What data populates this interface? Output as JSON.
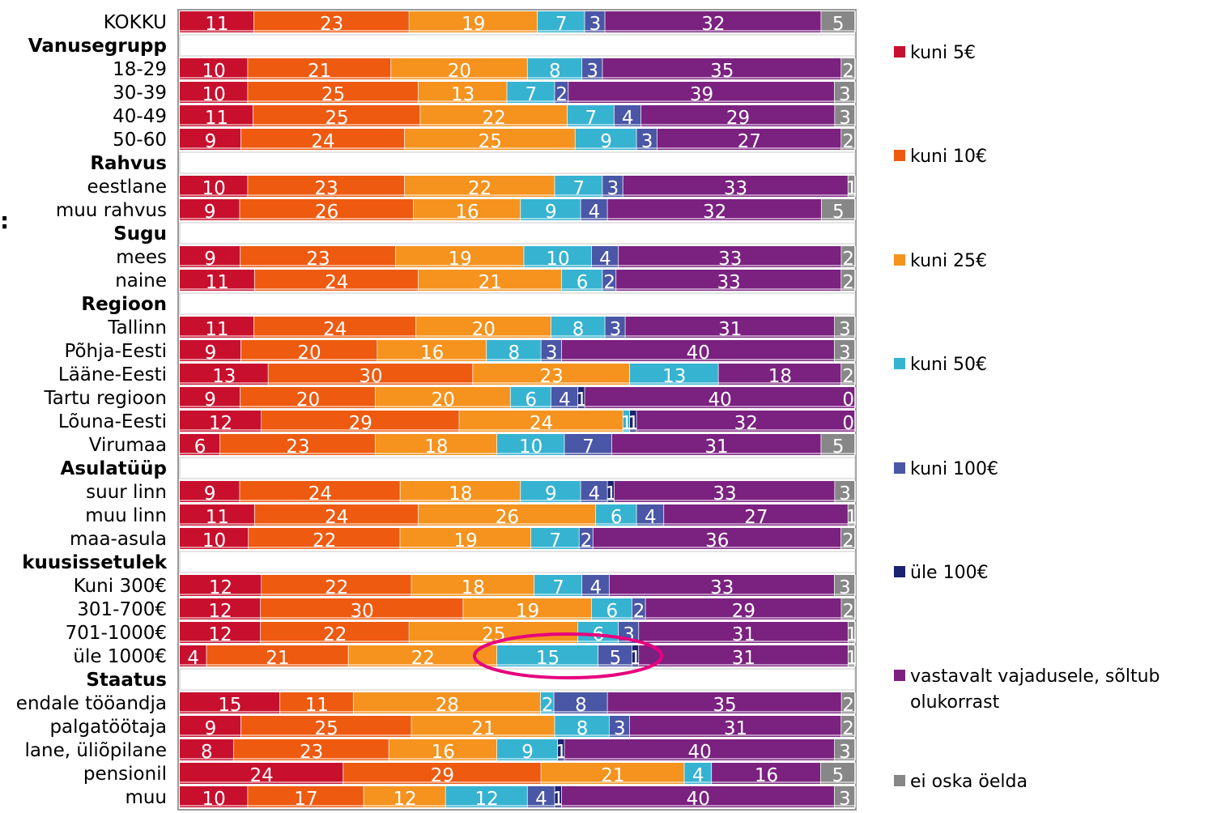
{
  "chart_data": {
    "type": "bar",
    "orientation": "horizontal",
    "stacked": true,
    "percent": true,
    "xlim": [
      0,
      100
    ],
    "grid": false,
    "legend_position": "right",
    "categories": [
      {
        "label": "KOKKU",
        "group": false,
        "values": [
          11,
          23,
          19,
          7,
          3,
          0,
          32,
          5
        ]
      },
      {
        "label": "Vanusegrupp",
        "group": true,
        "values": null
      },
      {
        "label": "18-29",
        "group": false,
        "values": [
          10,
          21,
          20,
          8,
          3,
          0,
          35,
          2
        ]
      },
      {
        "label": "30-39",
        "group": false,
        "values": [
          10,
          25,
          13,
          7,
          2,
          0,
          39,
          3
        ]
      },
      {
        "label": "40-49",
        "group": false,
        "values": [
          11,
          25,
          22,
          7,
          4,
          0,
          29,
          3
        ]
      },
      {
        "label": "50-60",
        "group": false,
        "values": [
          9,
          24,
          25,
          9,
          3,
          0,
          27,
          2
        ]
      },
      {
        "label": "Rahvus",
        "group": true,
        "values": null
      },
      {
        "label": "eestlane",
        "group": false,
        "values": [
          10,
          23,
          22,
          7,
          3,
          0,
          33,
          1
        ]
      },
      {
        "label": "muu rahvus",
        "group": false,
        "values": [
          9,
          26,
          16,
          9,
          4,
          0,
          32,
          5
        ]
      },
      {
        "label": "Sugu",
        "group": true,
        "values": null
      },
      {
        "label": "mees",
        "group": false,
        "values": [
          9,
          23,
          19,
          10,
          4,
          0,
          33,
          2
        ]
      },
      {
        "label": "naine",
        "group": false,
        "values": [
          11,
          24,
          21,
          6,
          2,
          0,
          33,
          2
        ]
      },
      {
        "label": "Regioon",
        "group": true,
        "values": null
      },
      {
        "label": "Tallinn",
        "group": false,
        "values": [
          11,
          24,
          20,
          8,
          3,
          0,
          31,
          3
        ]
      },
      {
        "label": "Põhja-Eesti",
        "group": false,
        "values": [
          9,
          20,
          16,
          8,
          3,
          0,
          40,
          3
        ]
      },
      {
        "label": "Lääne-Eesti",
        "group": false,
        "values": [
          13,
          30,
          23,
          13,
          0,
          0,
          18,
          2
        ]
      },
      {
        "label": "Tartu regioon",
        "group": false,
        "values": [
          9,
          20,
          20,
          6,
          4,
          1,
          40,
          0
        ]
      },
      {
        "label": "Lõuna-Eesti",
        "group": false,
        "values": [
          12,
          29,
          24,
          1,
          0,
          1,
          32,
          0
        ]
      },
      {
        "label": "Virumaa",
        "group": false,
        "values": [
          6,
          23,
          18,
          10,
          7,
          0,
          31,
          5
        ]
      },
      {
        "label": "Asulatüüp",
        "group": true,
        "values": null
      },
      {
        "label": "suur linn",
        "group": false,
        "values": [
          9,
          24,
          18,
          9,
          4,
          1,
          33,
          3
        ]
      },
      {
        "label": "muu linn",
        "group": false,
        "values": [
          11,
          24,
          26,
          6,
          4,
          0,
          27,
          1
        ]
      },
      {
        "label": "maa-asula",
        "group": false,
        "values": [
          10,
          22,
          19,
          7,
          2,
          0,
          36,
          2
        ]
      },
      {
        "label": "kuusissetulek",
        "group": true,
        "values": null
      },
      {
        "label": "Kuni 300€",
        "group": false,
        "values": [
          12,
          22,
          18,
          7,
          4,
          0,
          33,
          3
        ]
      },
      {
        "label": "301-700€",
        "group": false,
        "values": [
          12,
          30,
          19,
          6,
          2,
          0,
          29,
          2
        ]
      },
      {
        "label": "701-1000€",
        "group": false,
        "values": [
          12,
          22,
          25,
          6,
          3,
          0,
          31,
          1
        ]
      },
      {
        "label": "üle 1000€",
        "group": false,
        "values": [
          4,
          21,
          22,
          15,
          5,
          1,
          31,
          1
        ]
      },
      {
        "label": "Staatus",
        "group": true,
        "values": null
      },
      {
        "label": "endale tööandja",
        "group": false,
        "values": [
          15,
          11,
          28,
          2,
          8,
          0,
          35,
          2
        ]
      },
      {
        "label": "palgatöötaja",
        "group": false,
        "values": [
          9,
          25,
          21,
          8,
          3,
          0,
          31,
          2
        ]
      },
      {
        "label": "lane, üliõpilane",
        "group": false,
        "values": [
          8,
          23,
          16,
          9,
          0,
          1,
          40,
          3
        ]
      },
      {
        "label": "pensionil",
        "group": false,
        "values": [
          24,
          29,
          21,
          4,
          0,
          0,
          16,
          5
        ]
      },
      {
        "label": "muu",
        "group": false,
        "values": [
          10,
          17,
          12,
          12,
          4,
          1,
          40,
          3
        ]
      }
    ],
    "series": [
      {
        "name": "kuni 5€",
        "color": "#c8102e"
      },
      {
        "name": "kuni 10€",
        "color": "#ee5a10"
      },
      {
        "name": "kuni 25€",
        "color": "#f5931e"
      },
      {
        "name": "kuni 50€",
        "color": "#36b3d1"
      },
      {
        "name": "kuni 100€",
        "color": "#4a56a6"
      },
      {
        "name": "üle 100€",
        "color": "#1b2270"
      },
      {
        "name": "vastavalt vajadusele, sõltub olukorrast",
        "color": "#7b2180"
      },
      {
        "name": "ei oska öelda",
        "color": "#878787"
      }
    ],
    "highlight": {
      "category": "üle 1000€",
      "series": [
        "kuni 50€",
        "kuni 100€",
        "üle 100€"
      ],
      "color": "#e6007e"
    }
  },
  "stray_text": ":"
}
